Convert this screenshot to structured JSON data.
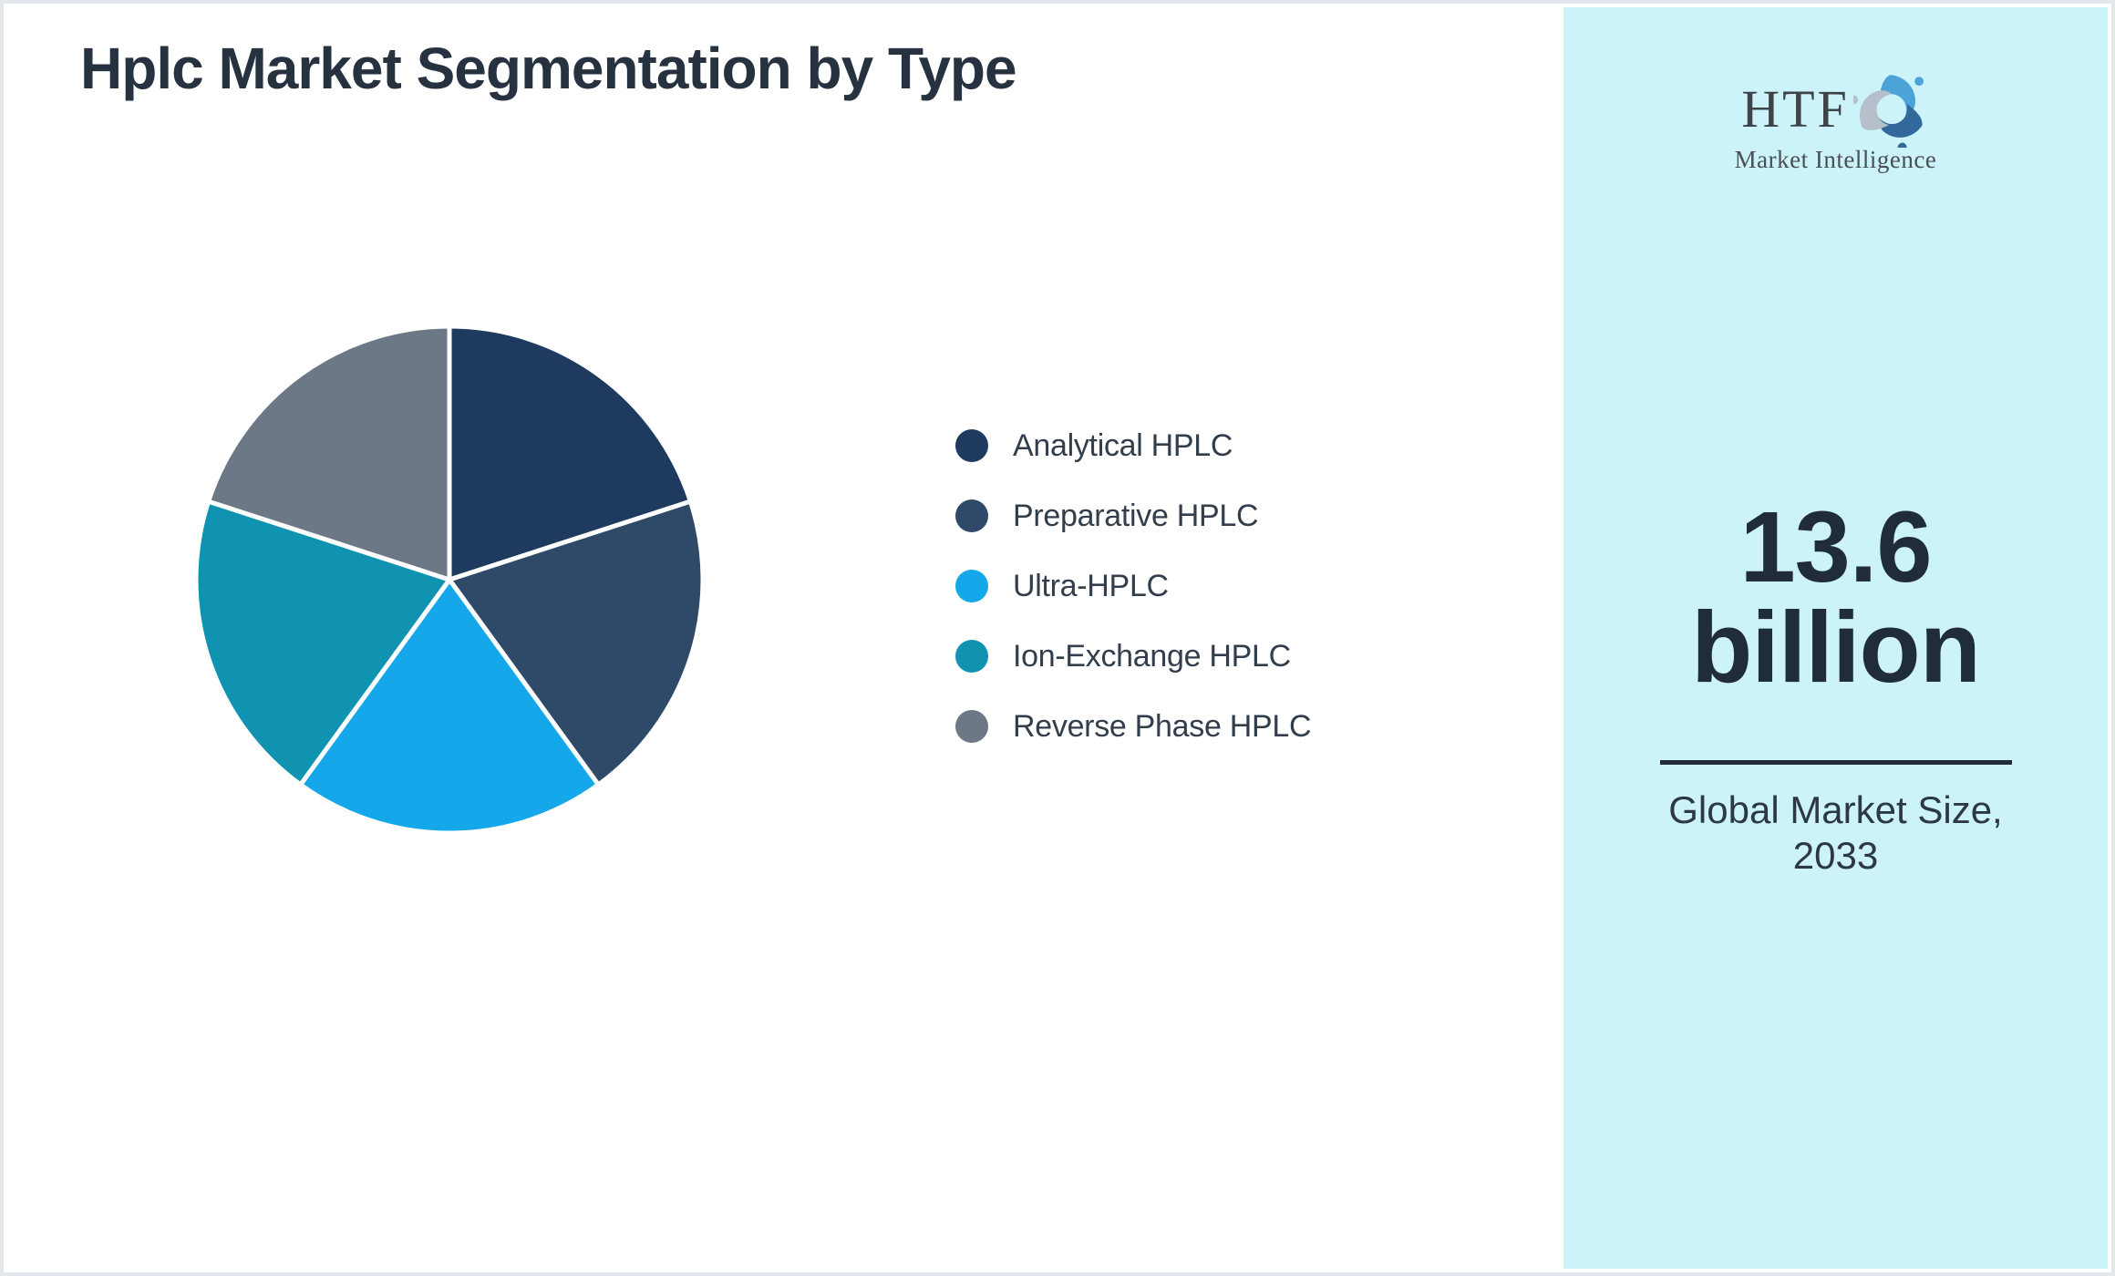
{
  "page": {
    "title": "Hplc Market Segmentation by Type"
  },
  "chart_data": {
    "type": "pie",
    "title": "Hplc Market Segmentation by Type",
    "categories": [
      "Analytical HPLC",
      "Preparative HPLC",
      "Ultra-HPLC",
      "Ion-Exchange HPLC",
      "Reverse Phase HPLC"
    ],
    "values": [
      20,
      20,
      20,
      20,
      20
    ],
    "unit": "percent-share",
    "colors": [
      "#1e3a5f",
      "#2e4a68",
      "#14a7e9",
      "#0f93b1",
      "#6d7887"
    ],
    "slice_border_color": "#ffffff",
    "start_angle_deg": 0,
    "direction": "clockwise",
    "legend_position": "right",
    "legend_marker": "circle"
  },
  "sidebar": {
    "background": "#cdf3fa",
    "logo": {
      "text": "HTF",
      "subtext": "Market Intelligence",
      "icon": "three-dolphins-icon",
      "icon_colors": [
        "#4ba3d8",
        "#33689b",
        "#b5c0cb"
      ]
    },
    "market_size_value": "13.6 billion",
    "market_size_label": "Global Market Size, 2033"
  }
}
